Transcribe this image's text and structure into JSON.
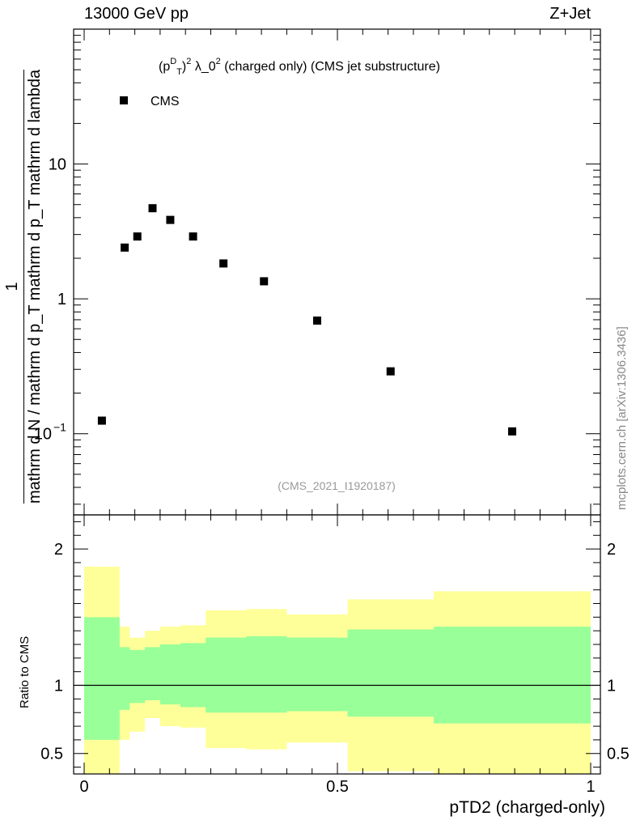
{
  "header": {
    "left": "13000 GeV pp",
    "right": "Z+Jet"
  },
  "side_note": "mcplots.cern.ch [arXiv:1306.3436]",
  "chart_data": [
    {
      "type": "scatter",
      "title": "(p_T^D)^2 λ_0^2 (charged only) (CMS jet substructure)",
      "title_parts": {
        "pre": "(p",
        "sub": "T",
        "sup1": "D",
        "mid": ")",
        "sup2": "2",
        "post": " λ_0",
        "sup3": "2",
        "tail": " (charged only) (CMS jet substructure)"
      },
      "ylabel": {
        "num": "mathrm d²N",
        "den": "mathrm d N / mathrm d p_T mathrm d p_T mathrm d lambda",
        "prefix": "1"
      },
      "y_scale": "log",
      "ylim": [
        0.025,
        100
      ],
      "y_ticks": [
        {
          "v": 0.1,
          "label": "10",
          "sup": "−1"
        },
        {
          "v": 1,
          "label": "1",
          "sup": ""
        },
        {
          "v": 10,
          "label": "10",
          "sup": ""
        }
      ],
      "xlim": [
        -0.02,
        1.0
      ],
      "legend": {
        "label": "CMS",
        "placement": "top-left"
      },
      "watermark": "(CMS_2021_I1920187)",
      "series": [
        {
          "name": "CMS",
          "color": "#000000",
          "x": [
            0.035,
            0.08,
            0.105,
            0.135,
            0.17,
            0.215,
            0.275,
            0.355,
            0.46,
            0.605,
            0.845
          ],
          "y": [
            0.125,
            2.4,
            2.9,
            4.7,
            3.85,
            2.9,
            1.83,
            1.35,
            0.69,
            0.29,
            0.104
          ]
        }
      ]
    },
    {
      "type": "area",
      "ylabel": "Ratio to CMS",
      "xlabel": "pTD2 (charged-only)",
      "ylim": [
        0.35,
        2.25
      ],
      "y_ticks": [
        0.5,
        1,
        2
      ],
      "x_ticks": [
        0,
        0.5,
        1
      ],
      "x_tick_labels": [
        "0",
        "0.5",
        "1"
      ],
      "reference_line": 1,
      "bin_edges": [
        0.0,
        0.07,
        0.09,
        0.12,
        0.15,
        0.19,
        0.24,
        0.32,
        0.4,
        0.52,
        0.69,
        1.0
      ],
      "bands": [
        {
          "name": "outer",
          "color": "#ffff99",
          "low": [
            0.35,
            0.6,
            0.66,
            0.76,
            0.7,
            0.69,
            0.54,
            0.53,
            0.58,
            0.37,
            0.35
          ],
          "high": [
            1.87,
            1.43,
            1.35,
            1.4,
            1.43,
            1.44,
            1.55,
            1.56,
            1.52,
            1.63,
            1.69
          ]
        },
        {
          "name": "inner",
          "color": "#99ff99",
          "low": [
            0.6,
            0.82,
            0.87,
            0.89,
            0.86,
            0.84,
            0.8,
            0.8,
            0.81,
            0.77,
            0.72
          ],
          "high": [
            1.5,
            1.28,
            1.26,
            1.28,
            1.3,
            1.31,
            1.35,
            1.36,
            1.35,
            1.41,
            1.43
          ]
        }
      ]
    }
  ]
}
